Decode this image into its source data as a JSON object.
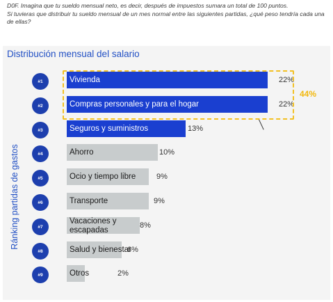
{
  "question": {
    "line1": "D0F. Imagina que tu sueldo mensual neto, es decir, después de impuestos sumara un total de 100 puntos.",
    "line2": "Si tuvieras que distribuir tu sueldo mensual de un mes normal entre las siguientes partidas, ¿qué peso tendría cada una de ellas?"
  },
  "colors": {
    "primary": "#1a3fd0",
    "secondary": "#c8cccd",
    "accent": "#f2c022",
    "rank_badge": "#1d3fae"
  },
  "chart_data": {
    "type": "bar",
    "orientation": "horizontal",
    "title": "Distribución mensual del salario",
    "ylabel": "Ránking partidas de gastos",
    "xlim": [
      0,
      22
    ],
    "grid": false,
    "unit": "%",
    "categories": [
      "Vivienda",
      "Compras personales y para el hogar",
      "Seguros y suministros",
      "Ahorro",
      "Ocio y tiempo libre",
      "Transporte",
      "Vacaciones y escapadas",
      "Salud y bienestar",
      "Otros"
    ],
    "ranks": [
      "#1",
      "#2",
      "#3",
      "#4",
      "#5",
      "#6",
      "#7",
      "#8",
      "#9"
    ],
    "values": [
      22,
      22,
      13,
      10,
      9,
      9,
      8,
      6,
      2
    ],
    "value_labels": [
      "22%",
      "22%",
      "13%",
      "10%",
      "9%",
      "9%",
      "8%",
      "6%",
      "2%"
    ],
    "highlighted": [
      true,
      true,
      true,
      false,
      false,
      false,
      false,
      false,
      false
    ],
    "annotation": {
      "text": "44%",
      "groups": [
        "Vivienda",
        "Compras personales y para el hogar"
      ]
    }
  }
}
